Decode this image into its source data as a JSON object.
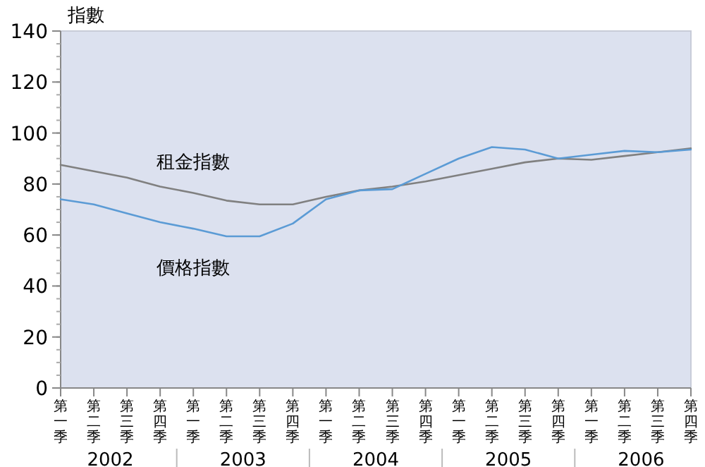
{
  "chart_data": {
    "type": "line",
    "ylabel": "指數",
    "categories": [
      "第一季",
      "第二季",
      "第三季",
      "第四季",
      "第一季",
      "第二季",
      "第三季",
      "第四季",
      "第一季",
      "第二季",
      "第三季",
      "第四季",
      "第一季",
      "第二季",
      "第三季",
      "第四季",
      "第一季",
      "第二季",
      "第三季",
      "第四季"
    ],
    "series": [
      {
        "name": "租金指數",
        "color": "#808080",
        "values": [
          87.5,
          85,
          82.5,
          79,
          76.5,
          73.5,
          72,
          72,
          75,
          77.5,
          79,
          81,
          83.5,
          86,
          88.5,
          90,
          89.5,
          91,
          92.5,
          94
        ]
      },
      {
        "name": "價格指數",
        "color": "#5b9bd5",
        "values": [
          74,
          72,
          68.5,
          65,
          62.5,
          59.5,
          59.5,
          64.5,
          74,
          77.5,
          78,
          84,
          90,
          94.5,
          93.5,
          90,
          91.5,
          93,
          92.5,
          93.5
        ]
      }
    ],
    "annotations": [
      "2002",
      "2003",
      "2004",
      "2005",
      "2006"
    ],
    "ylim": [
      0,
      140
    ],
    "yticks": [
      0,
      20,
      40,
      60,
      80,
      100,
      120,
      140
    ],
    "grid": false,
    "marker": "none",
    "line_style": "solid"
  }
}
